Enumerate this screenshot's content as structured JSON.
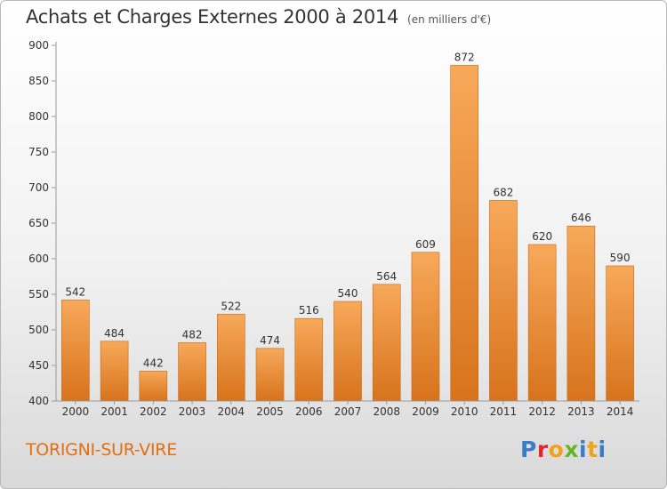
{
  "title": "Achats et Charges Externes 2000 à 2014",
  "subtitle": "(en milliers d'€)",
  "location": "TORIGNI-SUR-VIRE",
  "logo": {
    "text": "Proxiti",
    "letter_colors": [
      "#3a7cc8",
      "#e2262b",
      "#f0a21a",
      "#6ab42d",
      "#3a7cc8",
      "#f0a21a",
      "#3a7cc8"
    ]
  },
  "colors": {
    "bar_top": "#f7a95a",
    "bar_bottom": "#d8731c",
    "bar_edge": "#c8681a",
    "axis": "#999999",
    "text": "#333333"
  },
  "chart_data": {
    "type": "bar",
    "title": "Achats et Charges Externes 2000 à 2014",
    "subtitle": "(en milliers d'€)",
    "categories": [
      "2000",
      "2001",
      "2002",
      "2003",
      "2004",
      "2005",
      "2006",
      "2007",
      "2008",
      "2009",
      "2010",
      "2011",
      "2012",
      "2013",
      "2014"
    ],
    "values": [
      542,
      484,
      442,
      482,
      522,
      474,
      516,
      540,
      564,
      609,
      872,
      682,
      620,
      646,
      590
    ],
    "ylim": [
      400,
      900
    ],
    "yticks": [
      400,
      450,
      500,
      550,
      600,
      650,
      700,
      750,
      800,
      850,
      900
    ],
    "grid": false
  }
}
